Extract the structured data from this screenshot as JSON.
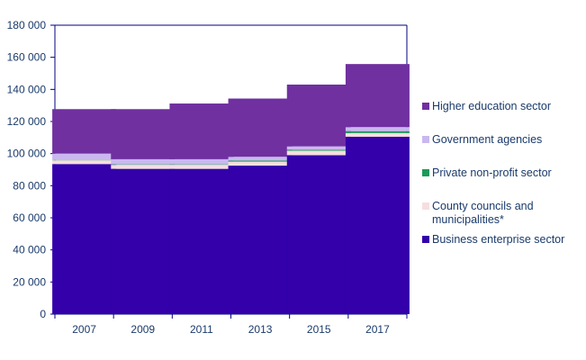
{
  "chart_data": {
    "type": "bar",
    "stacked": true,
    "title": "",
    "xlabel": "",
    "ylabel": "",
    "categories": [
      "2007",
      "2009",
      "2011",
      "2013",
      "2015",
      "2017"
    ],
    "ylim": [
      0,
      180000
    ],
    "yticks": [
      0,
      20000,
      40000,
      60000,
      80000,
      100000,
      120000,
      140000,
      160000,
      180000
    ],
    "ytick_labels": [
      "0",
      "20 000",
      "40 000",
      "60 000",
      "80 000",
      "100 000",
      "120 000",
      "140 000",
      "160 000",
      "180 000"
    ],
    "grid": false,
    "legend_position": "right",
    "series": [
      {
        "name": "Business enterprise sector",
        "color": "#3300aa",
        "values": [
          93500,
          90500,
          90500,
          92500,
          99000,
          110500
        ]
      },
      {
        "name": "County councils and municipalities*",
        "color": "#f6dede",
        "values": [
          2300,
          2500,
          2500,
          2500,
          2800,
          2300
        ]
      },
      {
        "name": "Private non-profit sector",
        "color": "#1a9a5a",
        "values": [
          200,
          300,
          300,
          700,
          600,
          1200
        ]
      },
      {
        "name": "Government agencies",
        "color": "#c9b8ef",
        "values": [
          4000,
          3200,
          3200,
          2300,
          2100,
          2500
        ]
      },
      {
        "name": "Higher education sector",
        "color": "#7030a0",
        "values": [
          27700,
          31200,
          34700,
          36300,
          38500,
          39300
        ]
      }
    ],
    "legend": [
      {
        "lines": [
          "Higher education sector"
        ],
        "color": "#7030a0"
      },
      {
        "lines": [
          "Government agencies"
        ],
        "color": "#c9b8ef"
      },
      {
        "lines": [
          "Private non-profit sector"
        ],
        "color": "#1a9a5a"
      },
      {
        "lines": [
          "County councils and",
          "municipalities*"
        ],
        "color": "#f6dede"
      },
      {
        "lines": [
          "Business enterprise sector"
        ],
        "color": "#3300aa"
      }
    ]
  }
}
